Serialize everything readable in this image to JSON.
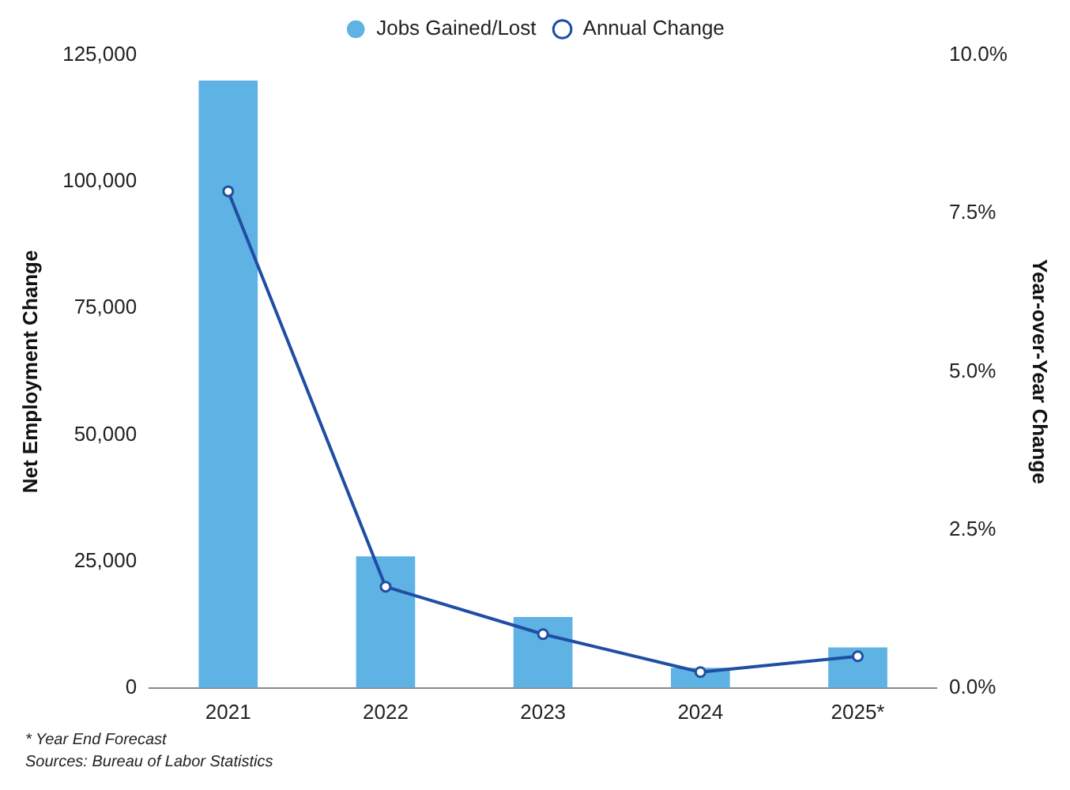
{
  "chart_data": {
    "type": "bar",
    "categories": [
      "2021",
      "2022",
      "2023",
      "2024",
      "2025*"
    ],
    "series": [
      {
        "name": "Jobs Gained/Lost",
        "color": "#5eb3e4",
        "values": [
          120000,
          26000,
          14000,
          4000,
          8000
        ]
      },
      {
        "name": "Annual Change",
        "type": "line",
        "axis": "y2",
        "color": "#1f4ea3",
        "values": [
          7.85,
          1.6,
          0.85,
          0.25,
          0.5
        ]
      }
    ],
    "ylabel": "Net Employment Change",
    "y2label": "Year-over-Year Change",
    "ylim": [
      0,
      125000
    ],
    "yticks": [
      {
        "value": 0,
        "label": "0"
      },
      {
        "value": 25000,
        "label": "25,000"
      },
      {
        "value": 50000,
        "label": "50,000"
      },
      {
        "value": 75000,
        "label": "75,000"
      },
      {
        "value": 100000,
        "label": "100,000"
      },
      {
        "value": 125000,
        "label": "125,000"
      }
    ],
    "y2lim": [
      0,
      10
    ],
    "y2ticks": [
      {
        "value": 0,
        "label": "0.0%"
      },
      {
        "value": 2.5,
        "label": "2.5%"
      },
      {
        "value": 5,
        "label": "5.0%"
      },
      {
        "value": 7.5,
        "label": "7.5%"
      },
      {
        "value": 10,
        "label": "10.0%"
      }
    ],
    "marker": "circle",
    "grid": false,
    "legend": "top",
    "annotations": [
      "* Year End Forecast",
      "Sources: Bureau of Labor Statistics"
    ]
  }
}
